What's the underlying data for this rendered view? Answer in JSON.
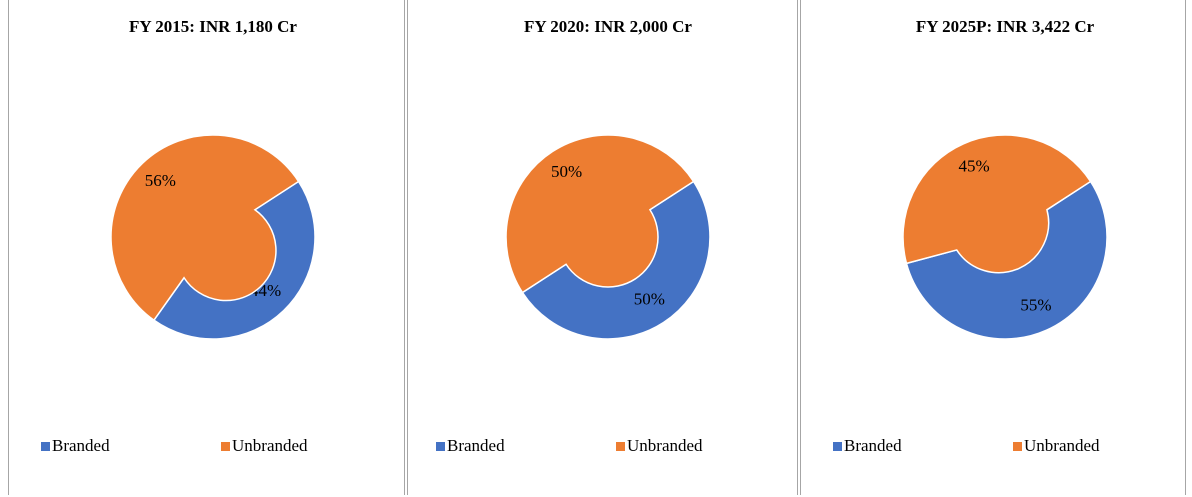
{
  "chart_data": [
    {
      "type": "pie",
      "title": "FY 2015: INR 1,180 Cr",
      "categories": [
        "Branded",
        "Unbranded"
      ],
      "values": [
        44,
        56
      ],
      "value_labels": [
        "44%",
        "56%"
      ],
      "colors": [
        "#4472c4",
        "#ed7d31"
      ],
      "donut": true
    },
    {
      "type": "pie",
      "title": "FY 2020: INR 2,000 Cr",
      "categories": [
        "Branded",
        "Unbranded"
      ],
      "values": [
        50,
        50
      ],
      "value_labels": [
        "50%",
        "50%"
      ],
      "colors": [
        "#4472c4",
        "#ed7d31"
      ],
      "donut": true
    },
    {
      "type": "pie",
      "title": "FY 2025P: INR 3,422 Cr",
      "categories": [
        "Branded",
        "Unbranded"
      ],
      "values": [
        55,
        45
      ],
      "value_labels": [
        "55%",
        "45%"
      ],
      "colors": [
        "#4472c4",
        "#ed7d31"
      ],
      "donut": true
    }
  ]
}
